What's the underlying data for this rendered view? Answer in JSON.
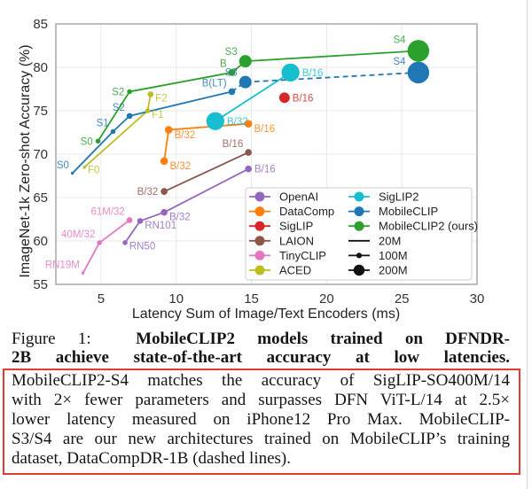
{
  "figure": {
    "caption": {
      "label": "Figure 1:",
      "title_line_1": "MobileCLIP2 models trained on DFNDR-",
      "title_line_2": "2B achieve state-of-the-art accuracy at low latencies.",
      "boxed_lines": [
        "MobileCLIP2-S4 matches the accuracy of SigLIP-SO400M/14",
        "with 2× fewer parameters and surpasses DFN ViT-L/14 at 2.5×",
        "lower latency measured on iPhone12 Pro Max.  MobileCLIP-",
        "S3/S4 are our new architectures trained on MobileCLIP’s training",
        "dataset, DataCompDR-1B (dashed lines)."
      ]
    },
    "highlight_color": "#e23b33"
  },
  "chart_data": {
    "type": "scatter",
    "title": "",
    "xlabel": "Latency Sum of Image/Text Encoders (ms)",
    "ylabel": "ImageNet-1k Zero-shot Accuracy (%)",
    "xlim": [
      2,
      30
    ],
    "ylim": [
      55,
      85
    ],
    "xticks": [
      5,
      10,
      15,
      20,
      25,
      30
    ],
    "yticks": [
      55,
      60,
      65,
      70,
      75,
      80,
      85
    ],
    "grid": true,
    "legend": {
      "placement": "lower-right",
      "columns": 2,
      "size_entries": [
        {
          "label": "20M",
          "size": 20
        },
        {
          "label": "100M",
          "size": 100
        },
        {
          "label": "200M",
          "size": 200
        }
      ]
    },
    "series": [
      {
        "name": "OpenAI",
        "color": "#9467bd",
        "dashed_segments": [],
        "points": [
          {
            "label": "RN50",
            "x": 6.6,
            "y": 59.8,
            "size": 60,
            "label_pos": "right-below"
          },
          {
            "label": "RN101",
            "x": 7.6,
            "y": 62.3,
            "size": 80,
            "label_pos": "right-below"
          },
          {
            "label": "B/32",
            "x": 9.2,
            "y": 63.3,
            "size": 100,
            "label_pos": "right-below"
          },
          {
            "label": "B/16",
            "x": 14.8,
            "y": 68.3,
            "size": 100,
            "label_pos": "right"
          }
        ]
      },
      {
        "name": "DataComp",
        "color": "#ff7f0e",
        "dashed_segments": [],
        "points": [
          {
            "label": "B/32",
            "x": 9.2,
            "y": 69.2,
            "size": 120,
            "label_pos": "right-below"
          },
          {
            "label": "B/32",
            "x": 9.5,
            "y": 72.8,
            "size": 120,
            "label_pos": "right-below"
          },
          {
            "label": "B/16",
            "x": 14.8,
            "y": 73.5,
            "size": 120,
            "label_pos": "right-below"
          }
        ]
      },
      {
        "name": "SigLIP",
        "color": "#d62728",
        "dashed_segments": [],
        "points": [
          {
            "label": "B/16",
            "x": 17.2,
            "y": 76.5,
            "size": 180,
            "label_pos": "right"
          }
        ]
      },
      {
        "name": "LAION",
        "color": "#8c564b",
        "dashed_segments": [],
        "points": [
          {
            "label": "B/32",
            "x": 9.2,
            "y": 65.7,
            "size": 100,
            "label_pos": "left"
          },
          {
            "label": "B/16",
            "x": 14.8,
            "y": 70.2,
            "size": 100,
            "label_pos": "above-left"
          }
        ]
      },
      {
        "name": "TinyCLIP",
        "color": "#e377c2",
        "dashed_segments": [],
        "points": [
          {
            "label": "RN19M",
            "x": 3.8,
            "y": 56.3,
            "size": 20,
            "label_pos": "above-left"
          },
          {
            "label": "40M/32",
            "x": 4.9,
            "y": 59.8,
            "size": 60,
            "label_pos": "above-left"
          },
          {
            "label": "61M/32",
            "x": 6.9,
            "y": 62.4,
            "size": 80,
            "label_pos": "above-left"
          }
        ]
      },
      {
        "name": "ACED",
        "color": "#bcbd22",
        "dashed_segments": [],
        "points": [
          {
            "label": "F0",
            "x": 3.9,
            "y": 68.5,
            "size": 20,
            "label_pos": "right-below"
          },
          {
            "label": "F1",
            "x": 8.1,
            "y": 75.0,
            "size": 60,
            "label_pos": "right-below"
          },
          {
            "label": "F2",
            "x": 8.3,
            "y": 76.9,
            "size": 80,
            "label_pos": "right-below"
          }
        ]
      },
      {
        "name": "SigLIP2",
        "color": "#17becf",
        "dashed_segments": [],
        "points": [
          {
            "label": "B/32",
            "x": 12.6,
            "y": 73.8,
            "size": 340,
            "label_pos": "right"
          },
          {
            "label": "B/16",
            "x": 17.6,
            "y": 79.4,
            "size": 340,
            "label_pos": "right"
          }
        ]
      },
      {
        "name": "MobileCLIP",
        "color": "#1f77b4",
        "dashed_segments": [
          3,
          4
        ],
        "points": [
          {
            "label": "S0",
            "x": 3.1,
            "y": 67.8,
            "size": 20,
            "label_pos": "above-left"
          },
          {
            "label": "S1",
            "x": 5.8,
            "y": 72.6,
            "size": 60,
            "label_pos": "above-left"
          },
          {
            "label": "S2",
            "x": 6.9,
            "y": 74.4,
            "size": 80,
            "label_pos": "above-left"
          },
          {
            "label": "B(LT)",
            "x": 13.7,
            "y": 77.2,
            "size": 100,
            "label_pos": "above-left"
          },
          {
            "label": "S3",
            "x": 14.6,
            "y": 78.3,
            "size": 220,
            "label_pos": "above-left"
          },
          {
            "label": "S4",
            "x": 26.1,
            "y": 79.4,
            "size": 420,
            "label_pos": "above-left"
          }
        ]
      },
      {
        "name": "MobileCLIP2 (ours)",
        "color": "#2ca02c",
        "dashed_segments": [],
        "points": [
          {
            "label": "S0",
            "x": 4.8,
            "y": 71.5,
            "size": 60,
            "label_pos": "left"
          },
          {
            "label": "S2",
            "x": 6.9,
            "y": 77.2,
            "size": 60,
            "label_pos": "left"
          },
          {
            "label": "B",
            "x": 13.7,
            "y": 79.4,
            "size": 100,
            "label_pos": "above-left"
          },
          {
            "label": "S3",
            "x": 14.6,
            "y": 80.7,
            "size": 220,
            "label_pos": "above-left"
          },
          {
            "label": "S4",
            "x": 26.1,
            "y": 81.9,
            "size": 420,
            "label_pos": "above-left"
          }
        ]
      }
    ]
  }
}
